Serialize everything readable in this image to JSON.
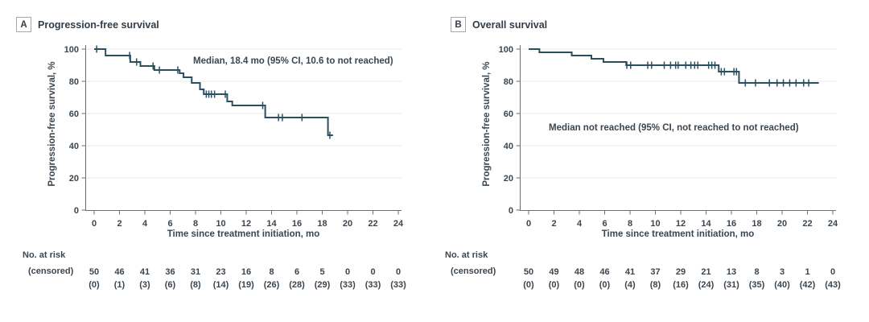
{
  "figure": {
    "risk_header_line1": "No. at risk",
    "risk_header_line2": "(censored)"
  },
  "colors": {
    "curve": "#2a4f5f",
    "text": "#3b4650",
    "axis": "#6d6e71",
    "grid": "#eceeee"
  },
  "chart_data": [
    {
      "type": "line",
      "subtype": "kaplan-meier-step",
      "panel_label": "A",
      "title": "Progression-free survival",
      "ylabel": "Progression-free survival, %",
      "xlabel": "Time since treatment initiation, mo",
      "annotation": "Median, 18.4 mo (95% CI, 10.6 to not reached)",
      "xlim": [
        0,
        24
      ],
      "ylim": [
        0,
        100
      ],
      "x_ticks": [
        0,
        2,
        4,
        6,
        8,
        10,
        12,
        14,
        16,
        18,
        20,
        22,
        24
      ],
      "y_ticks": [
        0,
        20,
        40,
        60,
        80,
        100
      ],
      "grid": true,
      "steps": [
        [
          0,
          100
        ],
        [
          0.9,
          96
        ],
        [
          2.85,
          92
        ],
        [
          3.65,
          89.5
        ],
        [
          4.75,
          87
        ],
        [
          6.75,
          85
        ],
        [
          7.05,
          82.5
        ],
        [
          7.7,
          79
        ],
        [
          8.35,
          75
        ],
        [
          8.65,
          72
        ],
        [
          10.5,
          67.5
        ],
        [
          10.9,
          65
        ],
        [
          13.5,
          57.5
        ],
        [
          18.45,
          46.5
        ]
      ],
      "curve_end_x": 18.85,
      "censor_marks": [
        [
          0.2,
          100
        ],
        [
          2.8,
          96
        ],
        [
          3.35,
          92
        ],
        [
          4.65,
          89.5
        ],
        [
          5.15,
          87
        ],
        [
          6.6,
          87
        ],
        [
          8.85,
          72
        ],
        [
          9.05,
          72
        ],
        [
          9.25,
          72
        ],
        [
          9.5,
          72
        ],
        [
          10.35,
          72
        ],
        [
          13.3,
          65
        ],
        [
          14.55,
          57.5
        ],
        [
          14.85,
          57.5
        ],
        [
          16.4,
          57.5
        ],
        [
          18.6,
          46.5
        ]
      ],
      "at_risk": [
        50,
        46,
        41,
        36,
        31,
        23,
        16,
        8,
        6,
        5,
        0,
        0,
        0
      ],
      "censored": [
        "(0)",
        "(1)",
        "(3)",
        "(6)",
        "(8)",
        "(14)",
        "(19)",
        "(26)",
        "(28)",
        "(29)",
        "(33)",
        "(33)",
        "(33)"
      ]
    },
    {
      "type": "line",
      "subtype": "kaplan-meier-step",
      "panel_label": "B",
      "title": "Overall survival",
      "ylabel": "Progression-free survival, %",
      "xlabel": "Time since treatment initiation, mo",
      "annotation": "Median not reached (95% CI, not reached to not reached)",
      "xlim": [
        0,
        24
      ],
      "ylim": [
        0,
        100
      ],
      "x_ticks": [
        0,
        2,
        4,
        6,
        8,
        10,
        12,
        14,
        16,
        18,
        20,
        22,
        24
      ],
      "y_ticks": [
        0,
        20,
        40,
        60,
        80,
        100
      ],
      "grid": true,
      "steps": [
        [
          0,
          100
        ],
        [
          0.85,
          98
        ],
        [
          3.4,
          96
        ],
        [
          4.95,
          94
        ],
        [
          5.9,
          92
        ],
        [
          7.7,
          90
        ],
        [
          15.0,
          86
        ],
        [
          16.6,
          79
        ]
      ],
      "curve_end_x": 22.9,
      "censor_marks": [
        [
          7.75,
          90
        ],
        [
          8.05,
          90
        ],
        [
          9.4,
          90
        ],
        [
          9.7,
          90
        ],
        [
          10.7,
          90
        ],
        [
          11.2,
          90
        ],
        [
          11.6,
          90
        ],
        [
          11.8,
          90
        ],
        [
          12.4,
          90
        ],
        [
          12.8,
          90
        ],
        [
          13.1,
          90
        ],
        [
          13.35,
          90
        ],
        [
          14.2,
          90
        ],
        [
          14.45,
          90
        ],
        [
          14.7,
          90
        ],
        [
          15.2,
          86
        ],
        [
          15.45,
          86
        ],
        [
          16.2,
          86
        ],
        [
          16.4,
          86
        ],
        [
          17.1,
          79
        ],
        [
          17.9,
          79
        ],
        [
          19.0,
          79
        ],
        [
          19.6,
          79
        ],
        [
          20.1,
          79
        ],
        [
          20.6,
          79
        ],
        [
          21.1,
          79
        ],
        [
          21.7,
          79
        ],
        [
          22.1,
          79
        ]
      ],
      "at_risk": [
        50,
        49,
        48,
        46,
        41,
        37,
        29,
        21,
        13,
        8,
        3,
        1,
        0
      ],
      "censored": [
        "(0)",
        "(0)",
        "(0)",
        "(0)",
        "(4)",
        "(8)",
        "(16)",
        "(24)",
        "(31)",
        "(35)",
        "(40)",
        "(42)",
        "(43)"
      ]
    }
  ]
}
